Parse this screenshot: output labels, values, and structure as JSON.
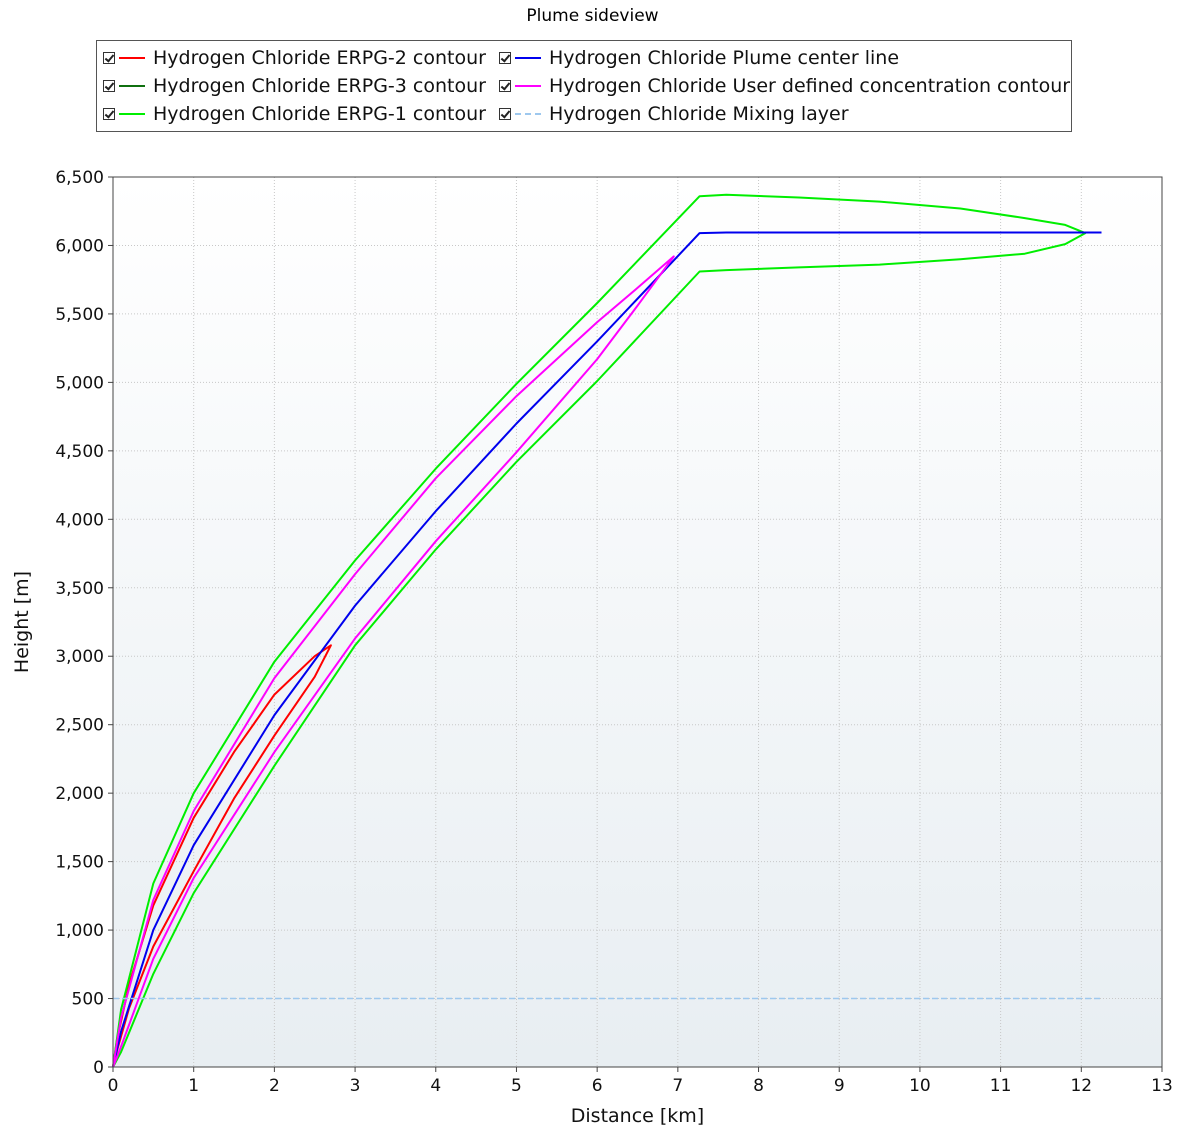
{
  "chart_data": {
    "type": "line",
    "title": "Plume sideview",
    "xlabel": "Distance [km]",
    "ylabel": "Height [m]",
    "xlim": [
      0,
      13
    ],
    "ylim": [
      0,
      6500
    ],
    "x_ticks": [
      0,
      1,
      2,
      3,
      4,
      5,
      6,
      7,
      8,
      9,
      10,
      11,
      12,
      13
    ],
    "x_tick_labels": [
      "0",
      "1",
      "2",
      "3",
      "4",
      "5",
      "6",
      "7",
      "8",
      "9",
      "10",
      "11",
      "12",
      "13"
    ],
    "y_ticks": [
      0,
      500,
      1000,
      1500,
      2000,
      2500,
      3000,
      3500,
      4000,
      4500,
      5000,
      5500,
      6000,
      6500
    ],
    "y_tick_labels": [
      "0",
      "500",
      "1,000",
      "1,500",
      "2,000",
      "2,500",
      "3,000",
      "3,500",
      "4,000",
      "4,500",
      "5,000",
      "5,500",
      "6,000",
      "6,500"
    ],
    "grid": true,
    "legend_position": "top",
    "series": [
      {
        "name": "Hydrogen Chloride ERPG-2 contour",
        "color": "#ff0000",
        "dash": false,
        "x": [
          0.0,
          0.05,
          0.2,
          0.5,
          1.0,
          1.5,
          2.0,
          2.5,
          2.7,
          2.5,
          2.0,
          1.5,
          1.0,
          0.5,
          0.2,
          0.05,
          0.0
        ],
        "y": [
          0,
          200,
          600,
          1180,
          1820,
          2300,
          2720,
          3000,
          3080,
          2850,
          2420,
          1960,
          1430,
          880,
          430,
          120,
          0
        ]
      },
      {
        "name": "Hydrogen Chloride ERPG-3 contour",
        "color": "#107010",
        "dash": false,
        "x": [],
        "y": []
      },
      {
        "name": "Hydrogen Chloride ERPG-1 contour",
        "color": "#00ee00",
        "dash": false,
        "x": [
          0.0,
          0.1,
          0.5,
          1.0,
          2.0,
          3.0,
          4.0,
          5.0,
          6.0,
          7.27,
          7.6,
          8.5,
          9.5,
          10.5,
          11.3,
          11.8,
          12.05,
          11.8,
          11.3,
          10.5,
          9.5,
          8.5,
          7.6,
          7.27,
          6.0,
          5.0,
          4.0,
          3.0,
          2.0,
          1.0,
          0.5,
          0.1,
          0.0
        ],
        "y": [
          0,
          420,
          1340,
          2000,
          2960,
          3700,
          4370,
          4990,
          5580,
          6360,
          6370,
          6350,
          6320,
          6270,
          6200,
          6150,
          6090,
          6010,
          5940,
          5900,
          5860,
          5840,
          5820,
          5810,
          5010,
          4420,
          3780,
          3080,
          2200,
          1270,
          680,
          110,
          0
        ]
      },
      {
        "name": "Hydrogen Chloride Plume center line",
        "color": "#0000ee",
        "dash": false,
        "x": [
          0.0,
          0.1,
          0.5,
          1.0,
          2.0,
          3.0,
          4.0,
          5.0,
          6.0,
          7.27,
          7.6,
          8.5,
          9.5,
          10.5,
          11.5,
          12.0,
          12.25
        ],
        "y": [
          0,
          260,
          1000,
          1620,
          2570,
          3370,
          4060,
          4700,
          5300,
          6090,
          6095,
          6095,
          6095,
          6095,
          6095,
          6095,
          6095
        ]
      },
      {
        "name": "Hydrogen Chloride User defined concentration contour",
        "color": "#ff00ff",
        "dash": false,
        "x": [
          0.0,
          0.1,
          0.5,
          1.0,
          2.0,
          3.0,
          4.0,
          5.0,
          6.0,
          6.5,
          6.95,
          6.5,
          6.0,
          5.0,
          4.0,
          3.0,
          2.0,
          1.0,
          0.5,
          0.1,
          0.0
        ],
        "y": [
          0,
          360,
          1220,
          1870,
          2840,
          3600,
          4300,
          4900,
          5440,
          5690,
          5920,
          5560,
          5170,
          4490,
          3840,
          3130,
          2300,
          1380,
          790,
          150,
          0
        ]
      },
      {
        "name": "Hydrogen Chloride Mixing layer",
        "color": "#9ec8ee",
        "dash": true,
        "x": [
          0.0,
          12.25
        ],
        "y": [
          500,
          500
        ]
      }
    ]
  }
}
